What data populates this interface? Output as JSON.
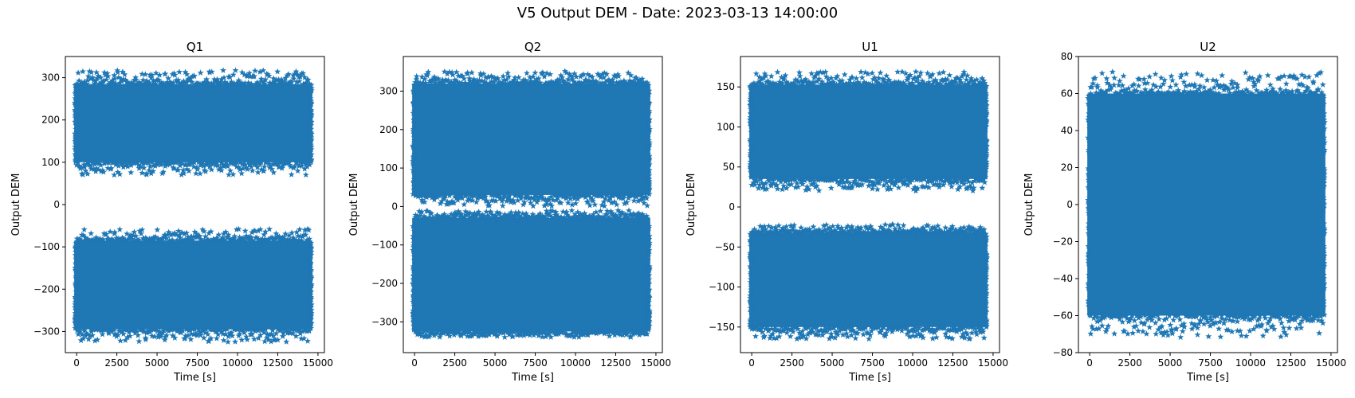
{
  "figure": {
    "suptitle": "V5 Output DEM - Date: 2023-03-13 14:00:00",
    "marker_color": "#1f77b4"
  },
  "chart_data": [
    {
      "type": "scatter",
      "title": "Q1",
      "xlabel": "Time [s]",
      "ylabel": "Output DEM",
      "xlim": [
        -700,
        15400
      ],
      "ylim": [
        -350,
        350
      ],
      "xticks": [
        0,
        2500,
        5000,
        7500,
        10000,
        12500,
        15000
      ],
      "yticks": [
        -300,
        -200,
        -100,
        0,
        100,
        200,
        300
      ],
      "x_range": [
        0,
        14500
      ],
      "bands": [
        {
          "edge_low": 100,
          "edge_high": 285,
          "out_low": 70,
          "out_high": 318
        },
        {
          "edge_low": -295,
          "edge_high": -85,
          "out_low": -325,
          "out_high": -58
        }
      ]
    },
    {
      "type": "scatter",
      "title": "Q2",
      "xlabel": "Time [s]",
      "ylabel": "Output DEM",
      "xlim": [
        -700,
        15400
      ],
      "ylim": [
        -380,
        390
      ],
      "xticks": [
        0,
        2500,
        5000,
        7500,
        10000,
        12500,
        15000
      ],
      "yticks": [
        -300,
        -200,
        -100,
        0,
        100,
        200,
        300
      ],
      "x_range": [
        0,
        14500
      ],
      "bands": [
        {
          "edge_low": 30,
          "edge_high": 320,
          "out_low": 0,
          "out_high": 352
        },
        {
          "edge_low": -325,
          "edge_high": -30,
          "out_low": -340,
          "out_high": -10
        }
      ]
    },
    {
      "type": "scatter",
      "title": "U1",
      "xlabel": "Time [s]",
      "ylabel": "Output DEM",
      "xlim": [
        -700,
        15400
      ],
      "ylim": [
        -182,
        188
      ],
      "xticks": [
        0,
        2500,
        5000,
        7500,
        10000,
        12500,
        15000
      ],
      "yticks": [
        -150,
        -100,
        -50,
        0,
        50,
        100,
        150
      ],
      "x_range": [
        0,
        14500
      ],
      "bands": [
        {
          "edge_low": 35,
          "edge_high": 153,
          "out_low": 20,
          "out_high": 170
        },
        {
          "edge_low": -150,
          "edge_high": -32,
          "out_low": -165,
          "out_high": -22
        }
      ]
    },
    {
      "type": "scatter",
      "title": "U2",
      "xlabel": "Time [s]",
      "ylabel": "Output DEM",
      "xlim": [
        -700,
        15400
      ],
      "ylim": [
        -80,
        80
      ],
      "xticks": [
        0,
        2500,
        5000,
        7500,
        10000,
        12500,
        15000
      ],
      "yticks": [
        -80,
        -60,
        -40,
        -20,
        0,
        20,
        40,
        60,
        80
      ],
      "x_range": [
        0,
        14500
      ],
      "bands": [
        {
          "edge_low": -60,
          "edge_high": 60,
          "out_low": -72,
          "out_high": 72
        }
      ]
    }
  ]
}
